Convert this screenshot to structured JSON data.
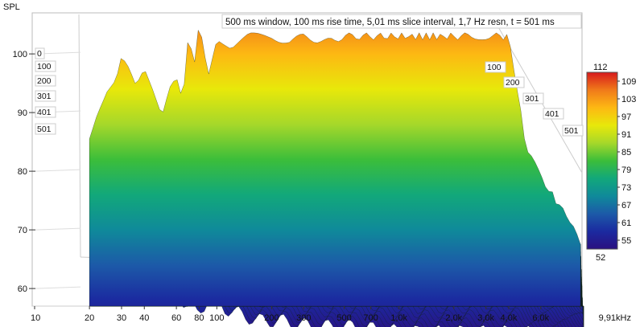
{
  "chart_data": {
    "type": "waterfall",
    "title": "500 ms window, 100 ms rise time, 5,01 ms slice interval, 1,7 Hz resn, t = 501 ms",
    "ylabel": "SPL",
    "xlabel": "",
    "x_unit": "kHz",
    "x_scale": "log",
    "xlim": [
      10,
      10000
    ],
    "ylim": [
      57,
      107
    ],
    "x_ticks": [
      {
        "v": 10,
        "label": "10"
      },
      {
        "v": 20,
        "label": "20"
      },
      {
        "v": 30,
        "label": "30"
      },
      {
        "v": 40,
        "label": "40"
      },
      {
        "v": 60,
        "label": "60"
      },
      {
        "v": 80,
        "label": "80"
      },
      {
        "v": 100,
        "label": "100"
      },
      {
        "v": 200,
        "label": "200"
      },
      {
        "v": 300,
        "label": "300"
      },
      {
        "v": 500,
        "label": "500"
      },
      {
        "v": 700,
        "label": "700"
      },
      {
        "v": 1000,
        "label": "1,0k"
      },
      {
        "v": 2000,
        "label": "2,0k"
      },
      {
        "v": 3000,
        "label": "3,0k"
      },
      {
        "v": 4000,
        "label": "4,0k"
      },
      {
        "v": 6000,
        "label": "6,0k"
      },
      {
        "v": 9910,
        "label": "9,91kHz"
      }
    ],
    "y_ticks": [
      {
        "v": 60,
        "label": "60"
      },
      {
        "v": 70,
        "label": "70"
      },
      {
        "v": 80,
        "label": "80"
      },
      {
        "v": 90,
        "label": "90"
      },
      {
        "v": 100,
        "label": "100"
      }
    ],
    "time_labels_left": [
      "0",
      "100",
      "200",
      "301",
      "401",
      "501"
    ],
    "time_labels_right": [
      "100",
      "200",
      "301",
      "401",
      "501"
    ],
    "colorbar": {
      "max_label": "112",
      "min_label": "52",
      "ticks": [
        "109",
        "103",
        "97",
        "91",
        "85",
        "79",
        "73",
        "67",
        "61",
        "55"
      ],
      "colors": [
        "#d7191c",
        "#f07a1a",
        "#fdb813",
        "#e8e80a",
        "#a6d82a",
        "#3cbe3a",
        "#12a87a",
        "#0f8a9a",
        "#1c5aa8",
        "#1b2aa0",
        "#2a1080"
      ]
    },
    "slices_ms": [
      0,
      100,
      200,
      301,
      401,
      501
    ],
    "series": [
      {
        "name": "0",
        "x": [
          20,
          22,
          25,
          28,
          30,
          33,
          36,
          40,
          45,
          50,
          55,
          60,
          65,
          70,
          75,
          80,
          85,
          90,
          100,
          120,
          150,
          200,
          250,
          300,
          400,
          500,
          700,
          1000,
          1500,
          2000,
          3000,
          4000,
          5000,
          6000,
          8000,
          9910
        ],
        "values": [
          85,
          89,
          93,
          95,
          99,
          97,
          94,
          97,
          93,
          89,
          94,
          96,
          92,
          104,
          98,
          106,
          101,
          97,
          103,
          101,
          103,
          103,
          102,
          103,
          102,
          103,
          103,
          103,
          103,
          103,
          103,
          103,
          84,
          79,
          73,
          68
        ]
      },
      {
        "name": "501",
        "x": [
          20,
          25,
          30,
          40,
          50,
          60,
          70,
          80,
          100,
          150,
          200,
          300,
          500,
          1000,
          2000,
          3000,
          5000,
          9910
        ],
        "values": [
          70,
          72,
          69,
          66,
          62,
          60,
          58,
          61,
          59,
          57,
          57,
          56,
          56,
          55,
          55,
          55,
          55,
          55
        ]
      }
    ]
  }
}
